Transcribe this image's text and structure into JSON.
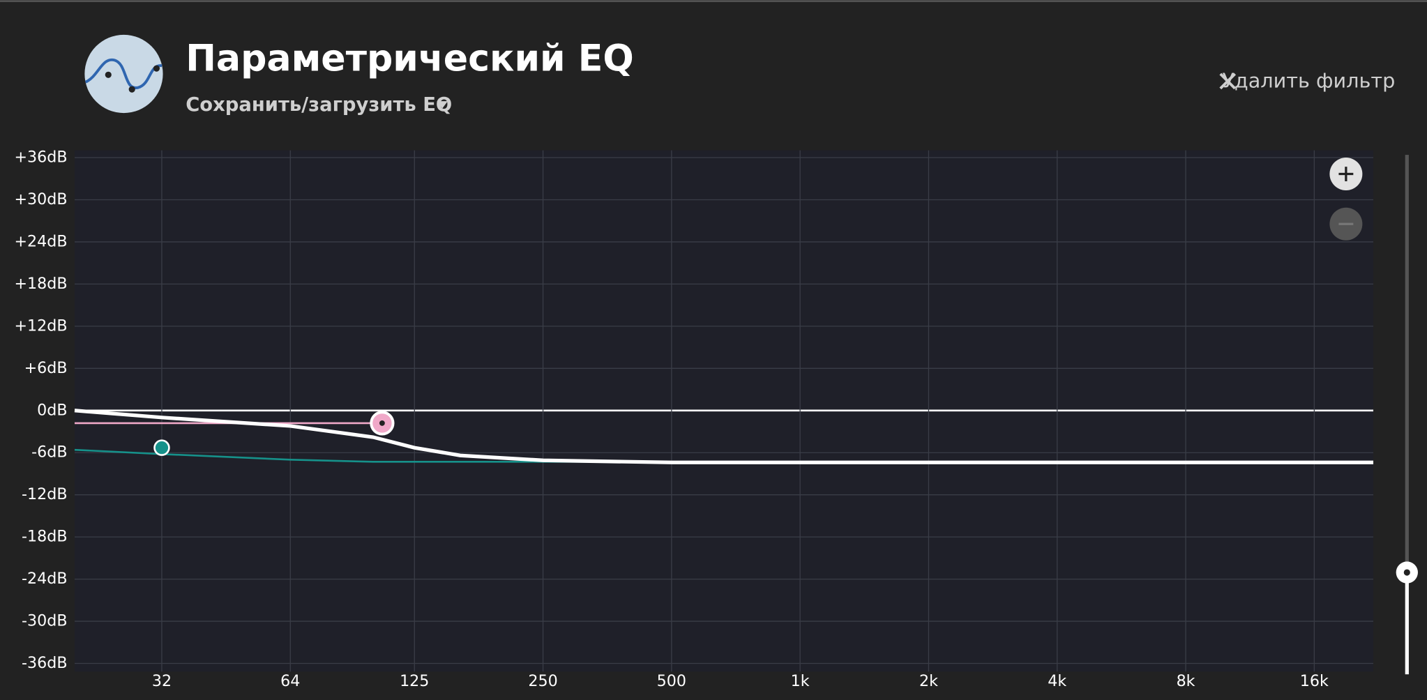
{
  "header": {
    "title": "Параметрический EQ",
    "preset": "Сохранить/загрузить EQ",
    "remove": "Удалить фильтр"
  },
  "chart_data": {
    "type": "line",
    "x": [
      20,
      32,
      64,
      100,
      125,
      160,
      250,
      500,
      1000,
      2000,
      4000,
      8000,
      16000,
      22000
    ],
    "series": [
      {
        "color": "#16918a",
        "values": [
          -5.6,
          -6.2,
          -7.0,
          -7.3,
          -7.3,
          -7.3,
          -7.3,
          -7.3,
          -7.3,
          -7.3,
          -7.3,
          -7.3,
          -7.3,
          -7.3
        ],
        "handle": {
          "x": 32,
          "y": -5.3
        }
      },
      {
        "color": "#f0a8c8",
        "values": [
          -1.8,
          -1.8,
          -1.8,
          -1.8,
          null,
          null,
          null,
          null,
          null,
          null,
          null,
          null,
          null,
          null
        ],
        "handle": {
          "x": 105,
          "y": -1.8
        }
      },
      {
        "color": "#ffffff",
        "values": [
          0,
          -1.0,
          -2.2,
          -3.8,
          -5.3,
          -6.4,
          -7.1,
          -7.4,
          -7.4,
          -7.4,
          -7.4,
          -7.4,
          -7.4,
          -7.4
        ]
      }
    ],
    "log_x": true,
    "xlim": [
      20,
      22000
    ],
    "xticks": [
      32,
      64,
      125,
      250,
      500,
      {
        "value": 1000,
        "label": "1k"
      },
      {
        "value": 2000,
        "label": "2k"
      },
      {
        "value": 4000,
        "label": "4k"
      },
      {
        "value": 8000,
        "label": "8k"
      },
      {
        "value": 16000,
        "label": "16k"
      }
    ],
    "ylim": [
      -36,
      36
    ],
    "yticks": [
      {
        "value": 36,
        "label": "+36dB"
      },
      {
        "value": 30,
        "label": "+30dB"
      },
      {
        "value": 24,
        "label": "+24dB"
      },
      {
        "value": 18,
        "label": "+18dB"
      },
      {
        "value": 12,
        "label": "+12dB"
      },
      {
        "value": 6,
        "label": "+6dB"
      },
      {
        "value": 0,
        "label": "0dB"
      },
      {
        "value": -6,
        "label": "-6dB"
      },
      {
        "value": -12,
        "label": "-12dB"
      },
      {
        "value": -18,
        "label": "-18dB"
      },
      {
        "value": -24,
        "label": "-24dB"
      },
      {
        "value": -30,
        "label": "-30dB"
      },
      {
        "value": -36,
        "label": "-36dB"
      }
    ],
    "grid": true
  }
}
